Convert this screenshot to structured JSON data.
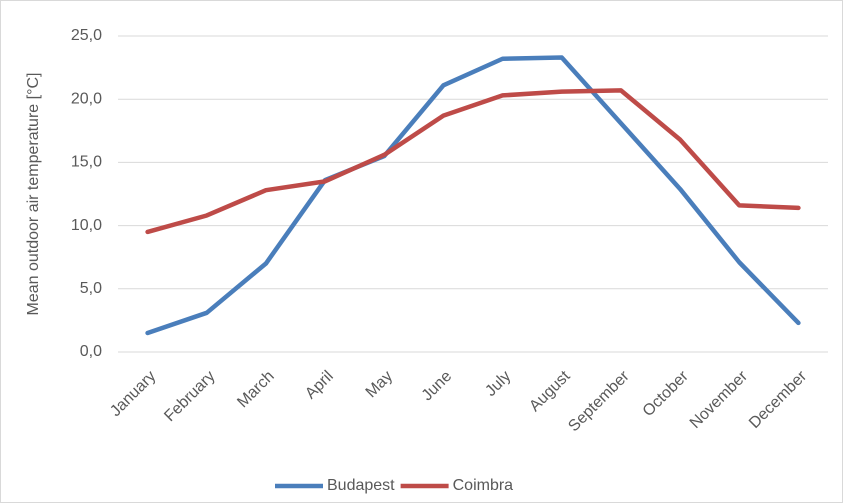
{
  "chart_data": {
    "type": "line",
    "y_label": "Mean outdoor air temperature [°C]",
    "categories": [
      "January",
      "February",
      "March",
      "April",
      "May",
      "June",
      "July",
      "August",
      "September",
      "October",
      "November",
      "December"
    ],
    "series": [
      {
        "name": "Budapest",
        "color": "#4a7ebb",
        "values": [
          1.5,
          3.1,
          7.0,
          13.6,
          15.5,
          21.1,
          23.2,
          23.3,
          18.1,
          12.9,
          7.1,
          2.3
        ]
      },
      {
        "name": "Coimbra",
        "color": "#be4b48",
        "values": [
          9.5,
          10.8,
          12.8,
          13.5,
          15.6,
          18.7,
          20.3,
          20.6,
          20.7,
          16.8,
          11.6,
          11.4
        ]
      }
    ],
    "ylim": [
      0,
      25
    ],
    "yticks": [
      {
        "value": 0,
        "label": "0,0"
      },
      {
        "value": 5,
        "label": "5,0"
      },
      {
        "value": 10,
        "label": "10,0"
      },
      {
        "value": 15,
        "label": "15,0"
      },
      {
        "value": 20,
        "label": "20,0"
      },
      {
        "value": 25,
        "label": "25,0"
      }
    ],
    "grid": true,
    "legend": "bottom"
  }
}
